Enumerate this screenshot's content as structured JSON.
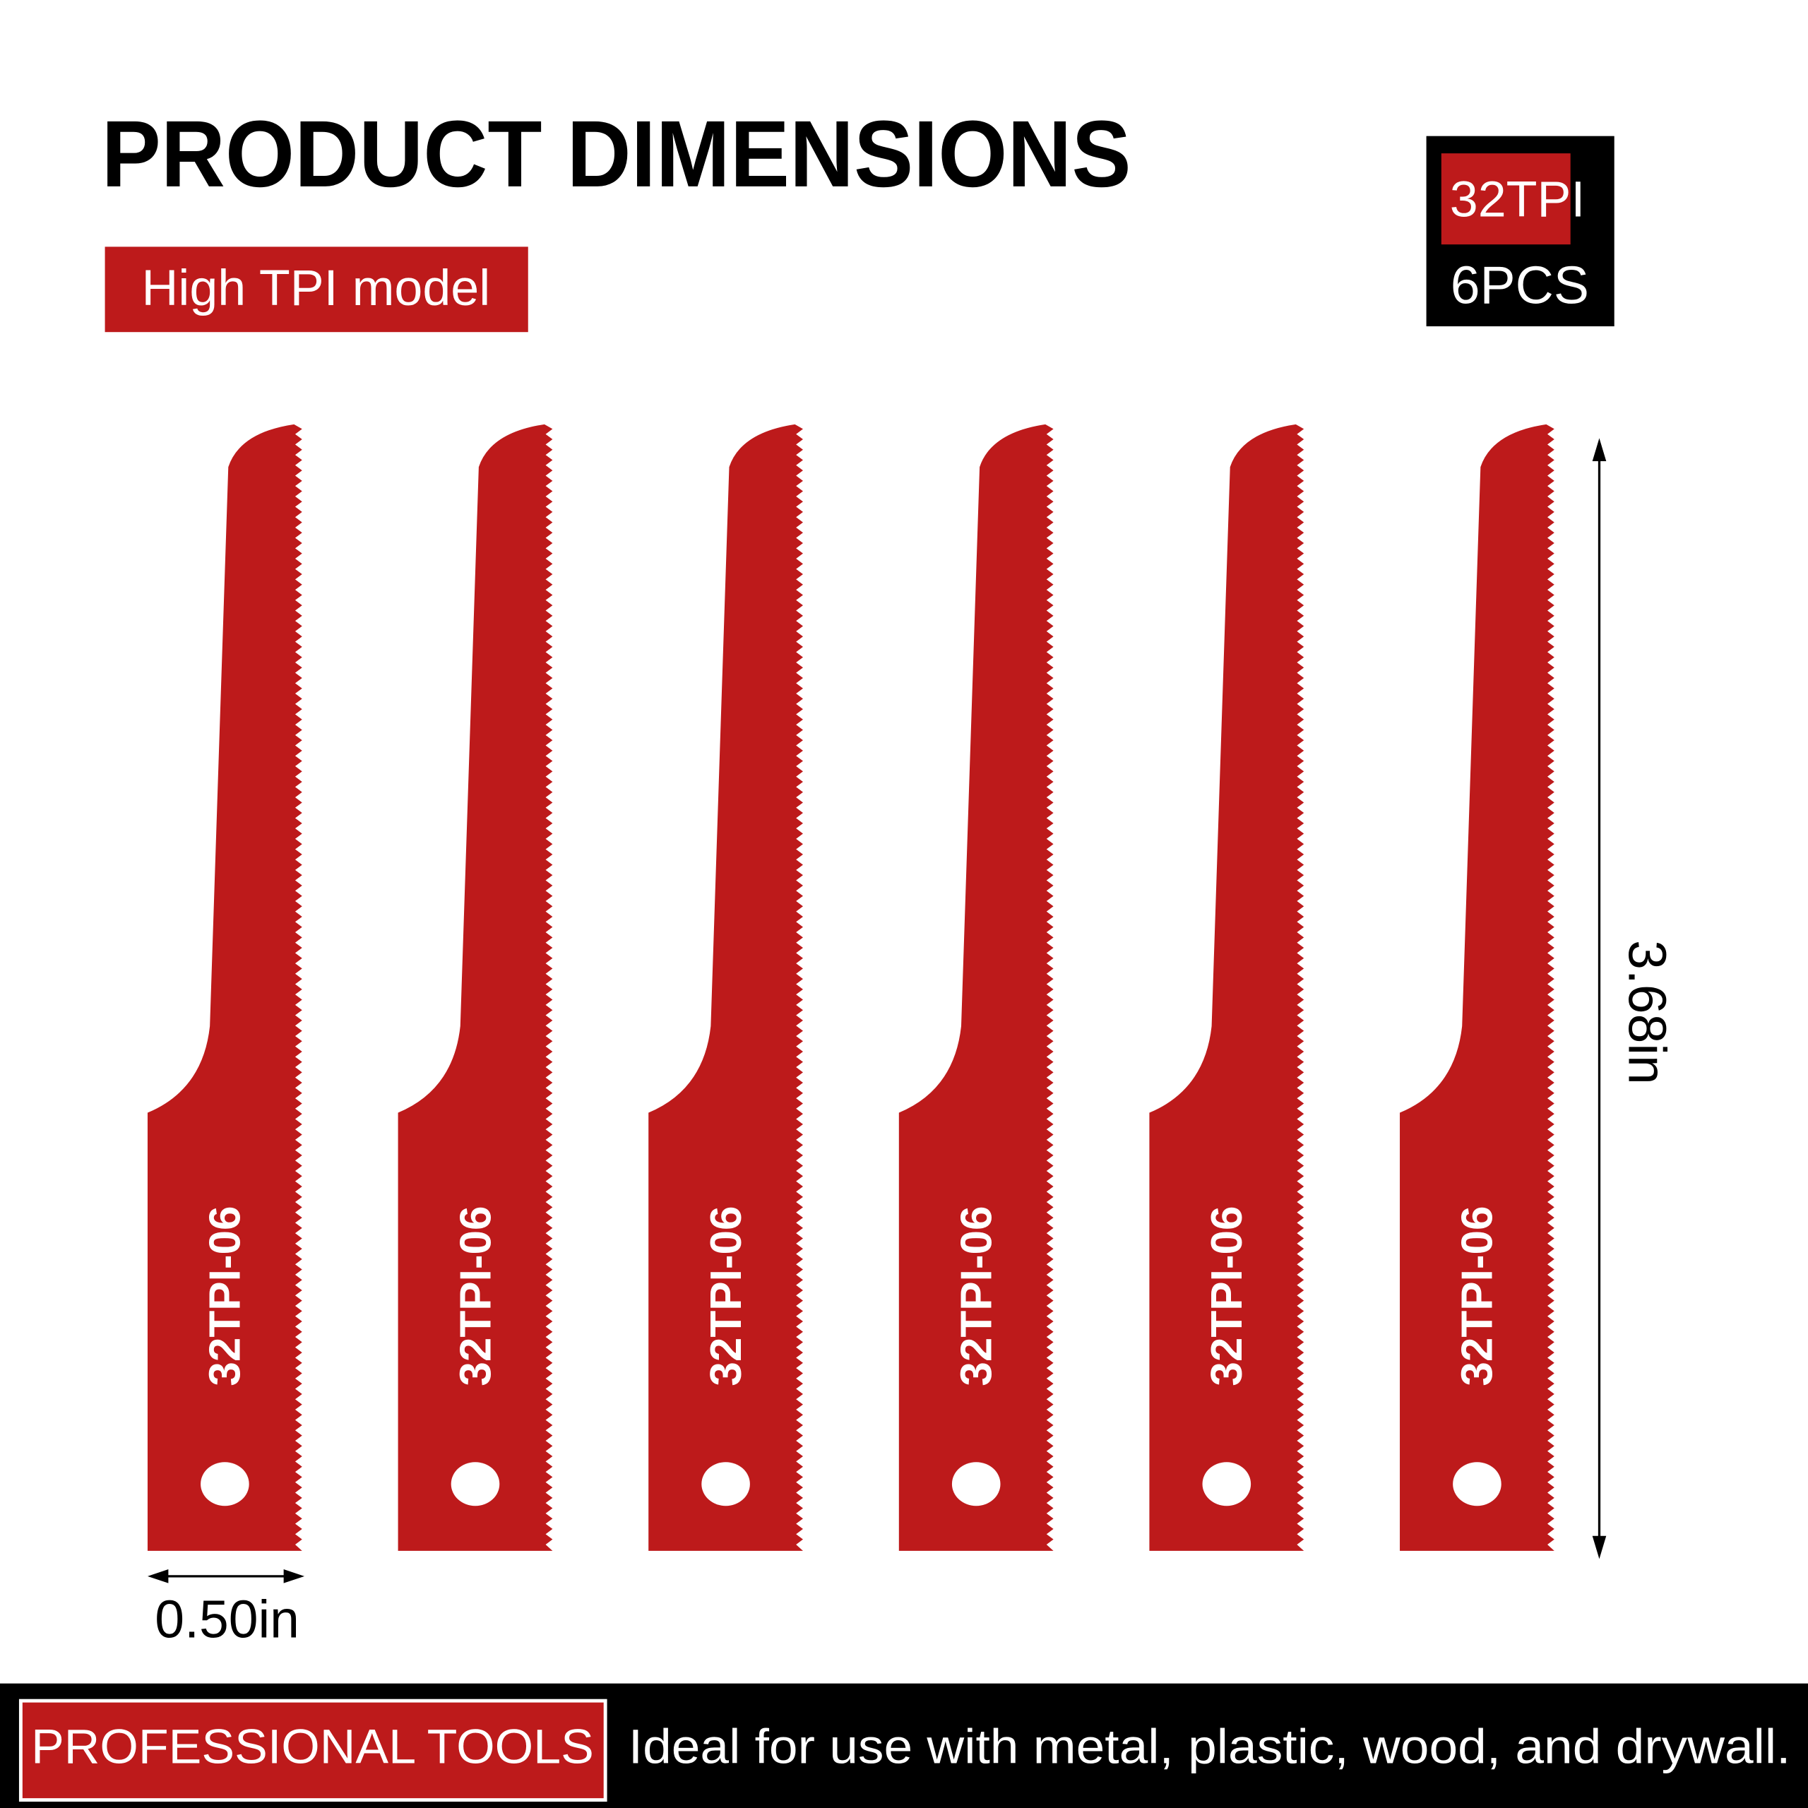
{
  "header": {
    "title": "PRODUCT DIMENSIONS",
    "subtitle": "High TPI model"
  },
  "badge": {
    "tpi": "32TPI",
    "count": "6PCS"
  },
  "blades": [
    {
      "label": "32TPI-06"
    },
    {
      "label": "32TPI-06"
    },
    {
      "label": "32TPI-06"
    },
    {
      "label": "32TPI-06"
    },
    {
      "label": "32TPI-06"
    },
    {
      "label": "32TPI-06"
    }
  ],
  "dimensions": {
    "length": "3.68in",
    "width": "0.50in"
  },
  "footer": {
    "tag": "PROFESSIONAL TOOLS",
    "text": "Ideal for use with metal, plastic, wood, and drywall."
  }
}
